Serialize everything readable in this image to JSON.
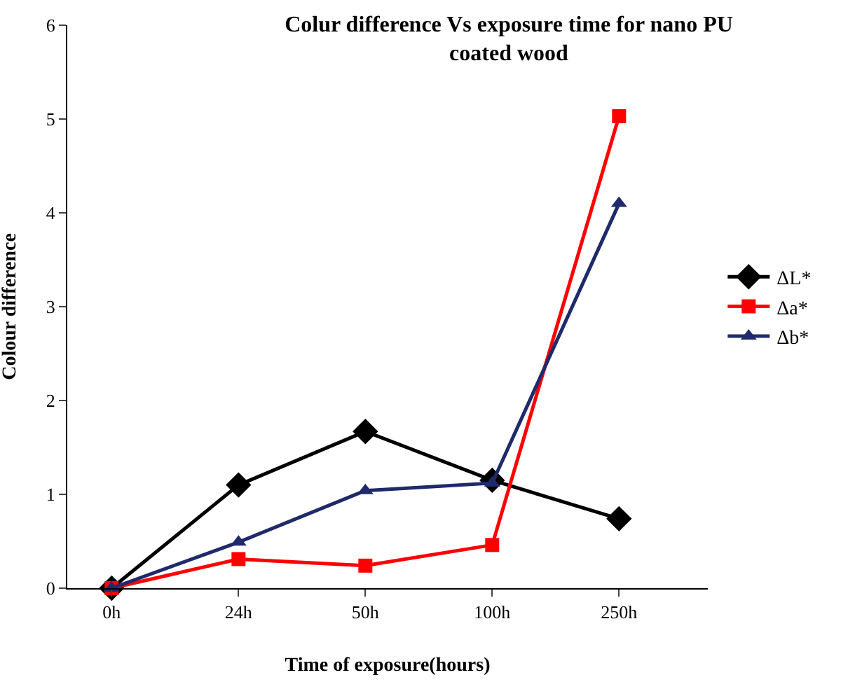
{
  "chart_data": {
    "type": "line",
    "title": "Colur difference Vs exposure time for nano PU coated wood",
    "xlabel": "Time of exposure(hours)",
    "ylabel": "Colour difference",
    "categories": [
      "0h",
      "24h",
      "50h",
      "100h",
      "250h"
    ],
    "series": [
      {
        "name": "ΔL*",
        "color": "#000000",
        "marker": "diamond",
        "values": [
          0,
          1.1,
          1.67,
          1.15,
          0.74
        ]
      },
      {
        "name": "Δa*",
        "color": "#ff0000",
        "marker": "square",
        "values": [
          0,
          0.31,
          0.24,
          0.46,
          5.03
        ]
      },
      {
        "name": "Δb*",
        "color": "#1f2a6b",
        "marker": "triangle",
        "values": [
          0,
          0.49,
          1.04,
          1.12,
          4.1
        ]
      }
    ],
    "ylim": [
      0,
      6
    ],
    "yticks": [
      0,
      1,
      2,
      3,
      4,
      5,
      6
    ],
    "grid": false,
    "legend": "right",
    "line_style": "solid"
  }
}
